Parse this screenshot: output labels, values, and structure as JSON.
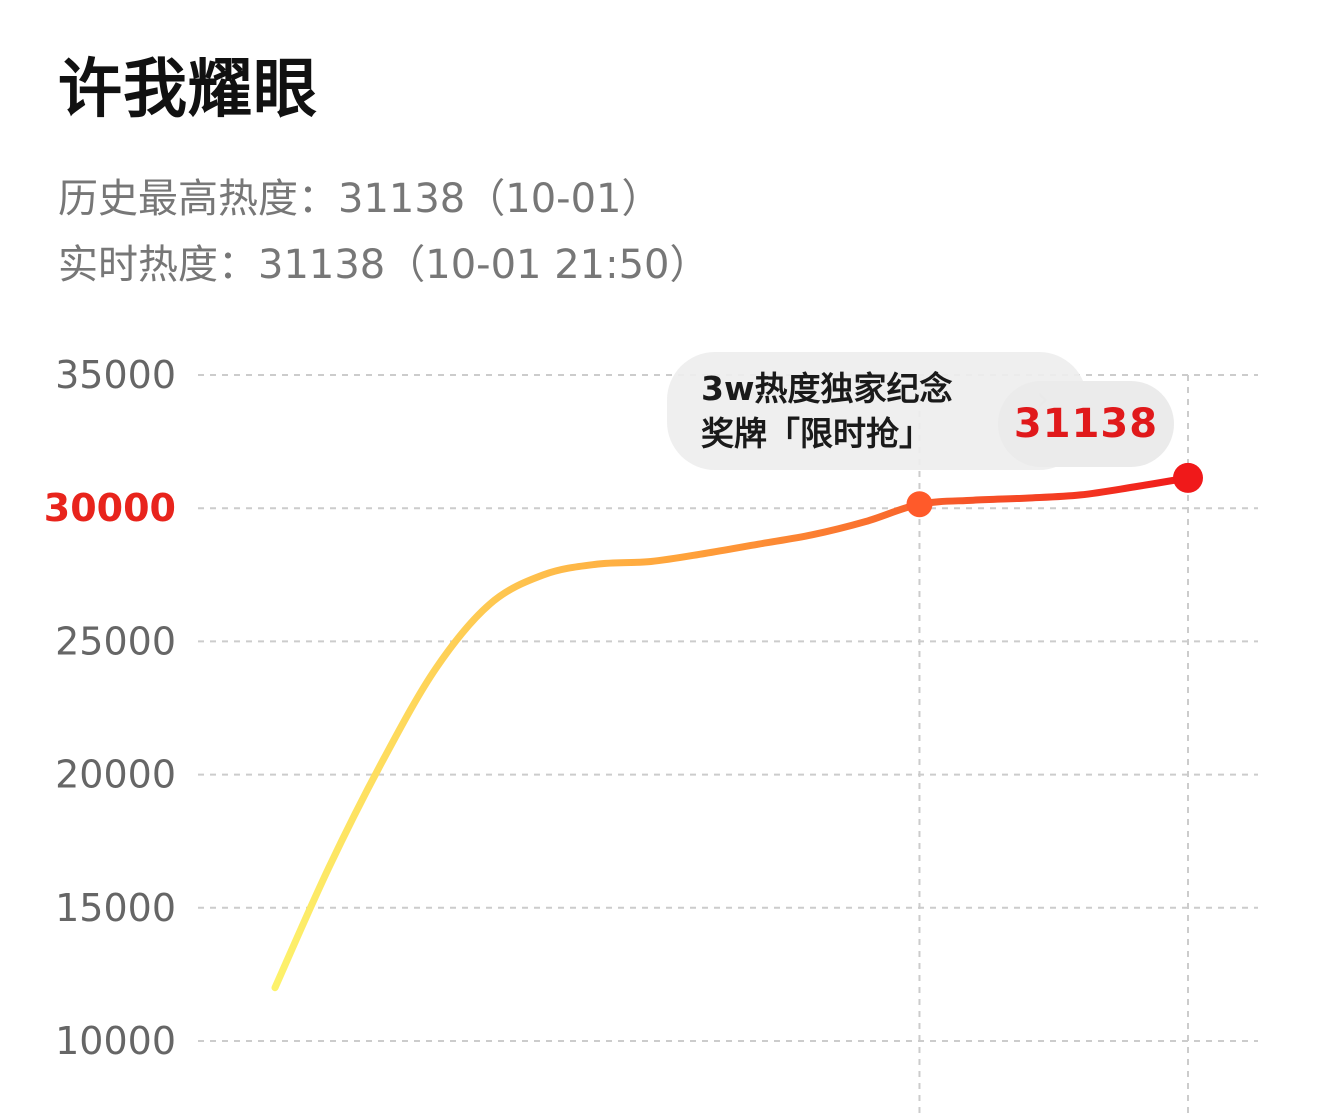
{
  "page": {
    "title": "许我耀眼",
    "peak_line": "历史最高热度：31138（10-01）",
    "realtime_line": "实时热度：31138（10-01 21:50）"
  },
  "tooltip": {
    "promo_text_line1": "3w热度独家纪念",
    "promo_text_line2": "奖牌「限时抢」",
    "arrow_icon": "chevron-right-icon",
    "value": "31138"
  },
  "colors": {
    "accent_red": "#e8241c",
    "gradient_start": "#fdf26b",
    "gradient_mid": "#ffa23a",
    "gradient_end": "#f0191a",
    "grid": "#cccccc",
    "axis_text": "#666666"
  },
  "chart_data": {
    "type": "line",
    "title": "",
    "xlabel": "",
    "ylabel": "",
    "ylim": [
      10000,
      35000
    ],
    "y_ticks": [
      35000,
      30000,
      25000,
      20000,
      15000,
      10000
    ],
    "highlight_tick": 30000,
    "grid": true,
    "series": [
      {
        "values": [
          12000,
          16500,
          20500,
          24000,
          26400,
          27500,
          27900,
          28000,
          28300,
          28650,
          29000,
          29500,
          30150,
          30300,
          30380,
          30500,
          30800,
          31138
        ]
      }
    ],
    "x": [
      0,
      1,
      2,
      3,
      4,
      5,
      6,
      7,
      8,
      9,
      10,
      11,
      12,
      13,
      14,
      15,
      16,
      17
    ],
    "x_max": 17,
    "marked_points": [
      {
        "x": 12,
        "y": 30150
      },
      {
        "x": 17,
        "y": 31138
      }
    ]
  }
}
